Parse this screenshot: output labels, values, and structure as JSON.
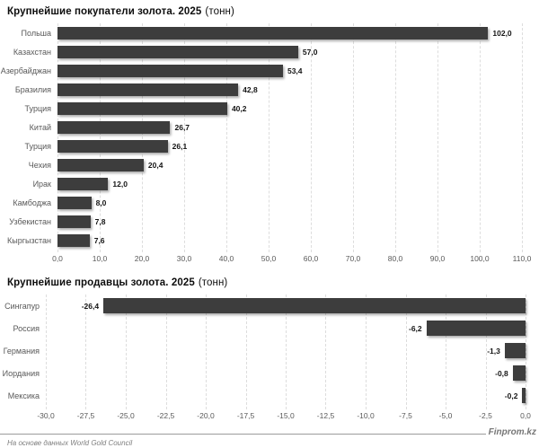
{
  "page": {
    "source_note": "На основе данных World Gold Council",
    "brand": "Finprom.kz"
  },
  "colors": {
    "bar": "#3d3d3d",
    "gridline": "#dddddd",
    "category_label": "#595959",
    "value_label": "#141414",
    "footer_rule": "#9c9c9c",
    "footer_text": "#7f7f7f"
  },
  "chart_data": [
    {
      "type": "bar",
      "orientation": "horizontal",
      "title": "Крупнейшие покупатели золота. 2025",
      "title_unit": "(тонн)",
      "categories": [
        "Польша",
        "Казахстан",
        "Азербайджан",
        "Бразилия",
        "Турция",
        "Китай",
        "Турция",
        "Чехия",
        "Ирак",
        "Камбоджа",
        "Узбекистан",
        "Кыргызстан"
      ],
      "values": [
        102.0,
        57.0,
        53.4,
        42.8,
        40.2,
        26.7,
        26.1,
        20.4,
        12.0,
        8.0,
        7.8,
        7.6
      ],
      "value_labels": [
        "102,0",
        "57,0",
        "53,4",
        "42,8",
        "40,2",
        "26,7",
        "26,1",
        "20,4",
        "12,0",
        "8,0",
        "7,8",
        "7,6"
      ],
      "xlim": [
        0,
        110
      ],
      "tick_labels": [
        "0,0",
        "10,0",
        "20,0",
        "30,0",
        "40,0",
        "50,0",
        "60,0",
        "70,0",
        "80,0",
        "90,0",
        "100,0",
        "110,0"
      ],
      "grid": true,
      "legend": "none",
      "bar_color": "#3d3d3d"
    },
    {
      "type": "bar",
      "orientation": "horizontal",
      "title": "Крупнейшие продавцы золота. 2025",
      "title_unit": "(тонн)",
      "categories": [
        "Сингапур",
        "Россия",
        "Германия",
        "Иордания",
        "Мексика"
      ],
      "values": [
        -26.4,
        -6.2,
        -1.3,
        -0.8,
        -0.2
      ],
      "value_labels": [
        "-26,4",
        "-6,2",
        "-1,3",
        "-0,8",
        "-0,2"
      ],
      "xlim": [
        -30,
        0
      ],
      "tick_labels": [
        "-30,0",
        "-27,5",
        "-25,0",
        "-22,5",
        "-20,0",
        "-17,5",
        "-15,0",
        "-12,5",
        "-10,0",
        "-7,5",
        "-5,0",
        "-2,5",
        "0,0"
      ],
      "grid": true,
      "legend": "none",
      "bar_color": "#3d3d3d"
    }
  ]
}
